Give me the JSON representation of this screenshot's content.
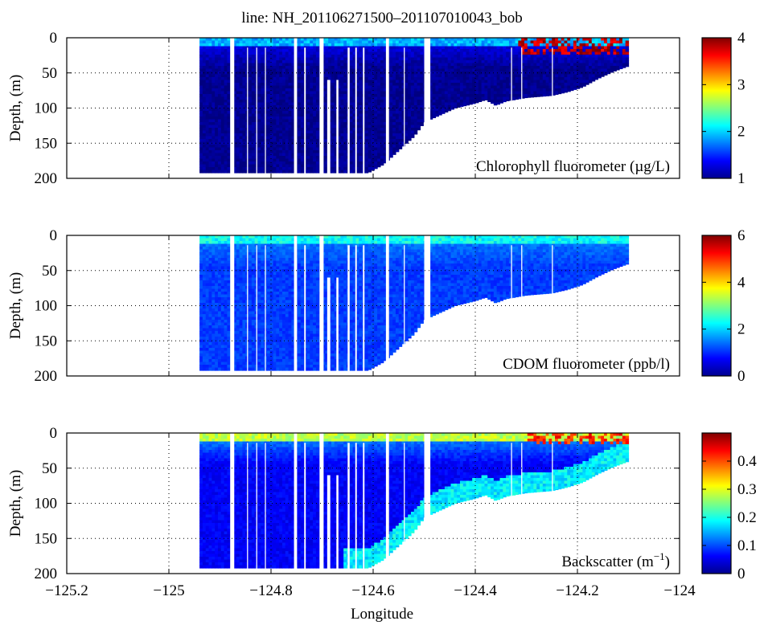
{
  "figure_title": "line: NH_201106271500–201107010043_bob",
  "shared_xlabel": "Longitude",
  "x_ticks": [
    "−125.2",
    "−125",
    "−124.8",
    "−124.6",
    "−124.4",
    "−124.2",
    "−124"
  ],
  "y_ticks": [
    "0",
    "50",
    "100",
    "150",
    "200"
  ],
  "colors": {
    "nodata": "#ffffff",
    "grid": "#000000",
    "frame": "#000000"
  },
  "chart_data": [
    {
      "type": "heatmap",
      "variable": "chlorophyll",
      "annotation": "Chlorophyll fluorometer (µg/L)",
      "ylabel": "Depth, (m)",
      "xlim": [
        -125.2,
        -124.0
      ],
      "ylim": [
        200,
        0
      ],
      "y_inverted": true,
      "grid": true,
      "colorbar": {
        "min": 1,
        "max": 4,
        "ticks": [
          "1",
          "2",
          "3",
          "4"
        ],
        "colormap": "jet"
      },
      "surface_value": 1.9,
      "deep_value": 1.05,
      "surface_layer_depth_m": 12,
      "hotspot": {
        "lon_range": [
          -124.32,
          -124.1
        ],
        "depth_range": [
          0,
          20
        ],
        "value": 3.8
      }
    },
    {
      "type": "heatmap",
      "variable": "cdom",
      "annotation": "CDOM fluorometer (ppb/l)",
      "ylabel": "Depth, (m)",
      "xlim": [
        -125.2,
        -124.0
      ],
      "ylim": [
        200,
        0
      ],
      "y_inverted": true,
      "grid": true,
      "colorbar": {
        "min": 0,
        "max": 6,
        "ticks": [
          "0",
          "2",
          "4",
          "6"
        ],
        "colormap": "jet"
      },
      "surface_value": 2.3,
      "deep_value": 1.1,
      "surface_layer_depth_m": 12
    },
    {
      "type": "heatmap",
      "variable": "backscatter",
      "annotation_main": "Backscatter (m",
      "annotation_sup": "−1",
      "annotation_end": ")",
      "ylabel": "Depth, (m)",
      "xlim": [
        -125.2,
        -124.0
      ],
      "ylim": [
        200,
        0
      ],
      "y_inverted": true,
      "grid": true,
      "colorbar": {
        "min": 0,
        "max": 0.5,
        "ticks": [
          "0",
          "0.1",
          "0.2",
          "0.3",
          "0.4"
        ],
        "colormap": "jet"
      },
      "surface_value": 0.28,
      "deep_value": 0.06,
      "surface_layer_depth_m": 10,
      "slope_value": 0.18,
      "hotspot": {
        "lon_range": [
          -124.3,
          -124.1
        ],
        "depth_range": [
          0,
          15
        ],
        "value": 0.42
      }
    }
  ],
  "transect": {
    "lon_start": -124.94,
    "lon_end": -124.1,
    "bottom_profile": [
      {
        "lon": -124.94,
        "depth": 192
      },
      {
        "lon": -124.61,
        "depth": 192
      },
      {
        "lon": -124.58,
        "depth": 180
      },
      {
        "lon": -124.55,
        "depth": 160
      },
      {
        "lon": -124.52,
        "depth": 140
      },
      {
        "lon": -124.5,
        "depth": 120
      },
      {
        "lon": -124.47,
        "depth": 110
      },
      {
        "lon": -124.44,
        "depth": 100
      },
      {
        "lon": -124.4,
        "depth": 93
      },
      {
        "lon": -124.38,
        "depth": 88
      },
      {
        "lon": -124.36,
        "depth": 96
      },
      {
        "lon": -124.34,
        "depth": 90
      },
      {
        "lon": -124.3,
        "depth": 85
      },
      {
        "lon": -124.25,
        "depth": 82
      },
      {
        "lon": -124.22,
        "depth": 77
      },
      {
        "lon": -124.19,
        "depth": 70
      },
      {
        "lon": -124.16,
        "depth": 58
      },
      {
        "lon": -124.13,
        "depth": 48
      },
      {
        "lon": -124.1,
        "depth": 40
      },
      {
        "lon": -124.1,
        "depth": 3
      }
    ],
    "gaps": [
      {
        "lon": -124.88,
        "width": 0.008,
        "depth_from": 0
      },
      {
        "lon": -124.847,
        "width": 0.002,
        "depth_from": 14
      },
      {
        "lon": -124.829,
        "width": 0.002,
        "depth_from": 14
      },
      {
        "lon": -124.812,
        "width": 0.002,
        "depth_from": 14
      },
      {
        "lon": -124.755,
        "width": 0.006,
        "depth_from": 0
      },
      {
        "lon": -124.735,
        "width": 0.003,
        "depth_from": 14
      },
      {
        "lon": -124.705,
        "width": 0.008,
        "depth_from": 0
      },
      {
        "lon": -124.69,
        "width": 0.006,
        "depth_from": 60
      },
      {
        "lon": -124.672,
        "width": 0.004,
        "depth_from": 60
      },
      {
        "lon": -124.65,
        "width": 0.004,
        "depth_from": 14
      },
      {
        "lon": -124.635,
        "width": 0.003,
        "depth_from": 14
      },
      {
        "lon": -124.62,
        "width": 0.003,
        "depth_from": 14
      },
      {
        "lon": -124.575,
        "width": 0.006,
        "depth_from": 0
      },
      {
        "lon": -124.54,
        "width": 0.002,
        "depth_from": 14
      },
      {
        "lon": -124.5,
        "width": 0.012,
        "depth_from": 0
      },
      {
        "lon": -124.33,
        "width": 0.002,
        "depth_from": 14
      },
      {
        "lon": -124.31,
        "width": 0.002,
        "depth_from": 14
      },
      {
        "lon": -124.25,
        "width": 0.002,
        "depth_from": 14
      }
    ]
  }
}
